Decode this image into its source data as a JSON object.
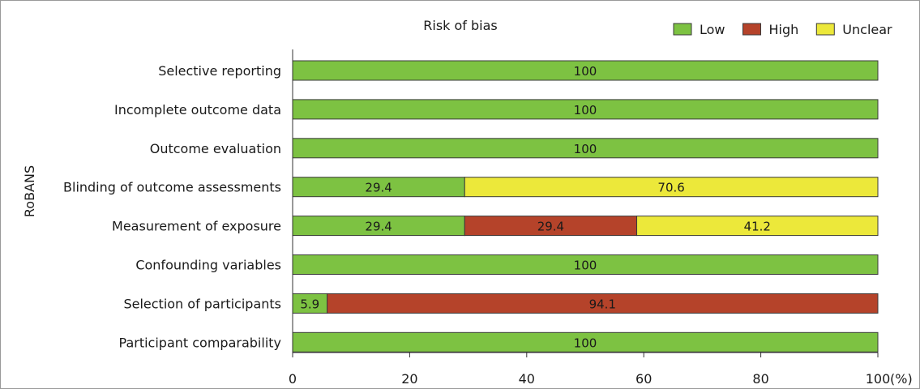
{
  "chart_data": {
    "type": "bar",
    "orientation": "horizontal",
    "stacked": true,
    "title": "Risk of bias",
    "ylabel": "RoBANS",
    "xlabel": "",
    "x_unit": "(%)",
    "xlim": [
      0,
      100
    ],
    "x_ticks": [
      0,
      20,
      40,
      60,
      80,
      100
    ],
    "grid": false,
    "legend_position": "top-right",
    "categories": [
      "Selective reporting",
      "Incomplete outcome data",
      "Outcome evaluation",
      "Blinding of outcome assessments",
      "Measurement of exposure",
      "Confounding variables",
      "Selection of participants",
      "Participant comparability"
    ],
    "series": [
      {
        "name": "Low",
        "color": "#7dc242",
        "values": [
          100,
          100,
          100,
          29.4,
          29.4,
          100,
          5.9,
          100
        ]
      },
      {
        "name": "High",
        "color": "#b5432a",
        "values": [
          0,
          0,
          0,
          0,
          29.4,
          0,
          94.1,
          0
        ]
      },
      {
        "name": "Unclear",
        "color": "#ece83a",
        "values": [
          0,
          0,
          0,
          70.6,
          41.2,
          0,
          0,
          0
        ]
      }
    ],
    "data_labels": [
      [
        "100",
        "",
        ""
      ],
      [
        "100",
        "",
        ""
      ],
      [
        "100",
        "",
        ""
      ],
      [
        "29.4",
        "",
        "70.6"
      ],
      [
        "29.4",
        "29.4",
        "41.2"
      ],
      [
        "100",
        "",
        ""
      ],
      [
        "5.9",
        "94.1",
        ""
      ],
      [
        "100",
        "",
        ""
      ]
    ]
  }
}
